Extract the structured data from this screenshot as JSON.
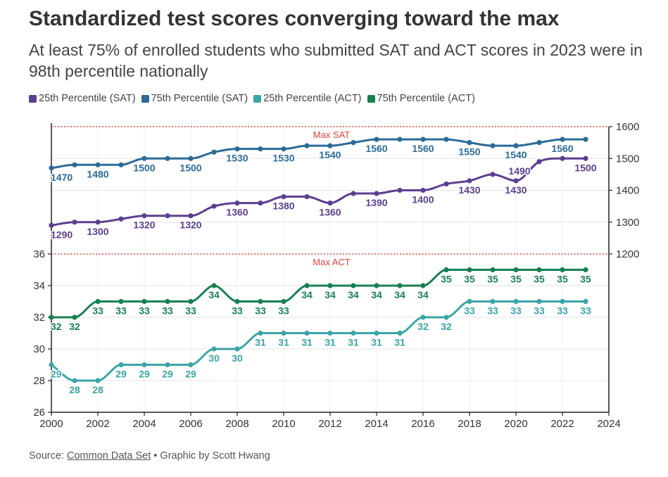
{
  "title": "Standardized test scores converging toward the max",
  "subtitle": "At least 75% of enrolled students who submitted SAT and ACT scores in 2023 were in 98th percentile nationally",
  "footer": {
    "source_prefix": "Source: ",
    "source_link": "Common Data Set",
    "credit": " • Graphic by Scott Hwang"
  },
  "colors": {
    "sat25": "#5b3f8f",
    "sat75": "#2b6b97",
    "act25": "#3aa5a6",
    "act75": "#178052",
    "max_line": "#e8413a"
  },
  "chart_data": {
    "type": "line",
    "x": [
      2000,
      2001,
      2002,
      2003,
      2004,
      2005,
      2006,
      2007,
      2008,
      2009,
      2010,
      2011,
      2012,
      2013,
      2014,
      2015,
      2016,
      2017,
      2018,
      2019,
      2020,
      2021,
      2022,
      2023
    ],
    "series": [
      {
        "name": "25th Percentile (SAT)",
        "axis": "right",
        "color": "#5b3f8f",
        "values": [
          1290,
          1300,
          1300,
          1310,
          1320,
          1320,
          1320,
          1350,
          1360,
          1360,
          1380,
          1380,
          1360,
          1390,
          1390,
          1400,
          1400,
          1420,
          1430,
          1450,
          1430,
          1490,
          1500,
          1500
        ],
        "labeled": [
          2000,
          2002,
          2004,
          2006,
          2008,
          2010,
          2012,
          2014,
          2016,
          2018,
          2020,
          2021,
          2023
        ]
      },
      {
        "name": "75th Percentile (SAT)",
        "axis": "right",
        "color": "#2b6b97",
        "values": [
          1470,
          1480,
          1480,
          1480,
          1500,
          1500,
          1500,
          1520,
          1530,
          1530,
          1530,
          1540,
          1540,
          1550,
          1560,
          1560,
          1560,
          1560,
          1550,
          1540,
          1540,
          1550,
          1560,
          1560
        ],
        "labeled": [
          2000,
          2002,
          2004,
          2006,
          2008,
          2010,
          2012,
          2014,
          2016,
          2018,
          2020,
          2022
        ]
      },
      {
        "name": "25th Percentile (ACT)",
        "axis": "left",
        "color": "#3aa5a6",
        "values": [
          29,
          28,
          28,
          29,
          29,
          29,
          29,
          30,
          30,
          31,
          31,
          31,
          31,
          31,
          31,
          31,
          32,
          32,
          33,
          33,
          33,
          33,
          33,
          33
        ],
        "labeled": [
          2000,
          2001,
          2002,
          2003,
          2004,
          2005,
          2006,
          2007,
          2008,
          2009,
          2010,
          2011,
          2012,
          2013,
          2014,
          2015,
          2016,
          2017,
          2018,
          2019,
          2020,
          2021,
          2022,
          2023
        ]
      },
      {
        "name": "75th Percentile (ACT)",
        "axis": "left",
        "color": "#178052",
        "values": [
          32,
          32,
          33,
          33,
          33,
          33,
          33,
          34,
          33,
          33,
          33,
          34,
          34,
          34,
          34,
          34,
          34,
          35,
          35,
          35,
          35,
          35,
          35,
          35
        ],
        "labeled": [
          2000,
          2001,
          2002,
          2003,
          2004,
          2005,
          2006,
          2007,
          2008,
          2009,
          2010,
          2011,
          2012,
          2013,
          2014,
          2015,
          2016,
          2017,
          2018,
          2019,
          2020,
          2021,
          2022,
          2023
        ]
      }
    ],
    "xlim": [
      2000,
      2024
    ],
    "xticks": [
      "2000",
      "2002",
      "2004",
      "2006",
      "2008",
      "2010",
      "2012",
      "2014",
      "2016",
      "2018",
      "2020",
      "2022",
      "2024"
    ],
    "left_axis": {
      "ylim": [
        26,
        36
      ],
      "ticks": [
        "26",
        "28",
        "30",
        "32",
        "34",
        "36"
      ]
    },
    "right_axis": {
      "ylim": [
        1200,
        1600
      ],
      "ticks": [
        "1200",
        "1300",
        "1400",
        "1500",
        "1600"
      ]
    },
    "max_lines": [
      {
        "label": "Max SAT",
        "value": 1600,
        "axis": "right"
      },
      {
        "label": "Max ACT",
        "value": 36,
        "axis": "left"
      }
    ],
    "legend_position": "top-left",
    "grid": true
  }
}
